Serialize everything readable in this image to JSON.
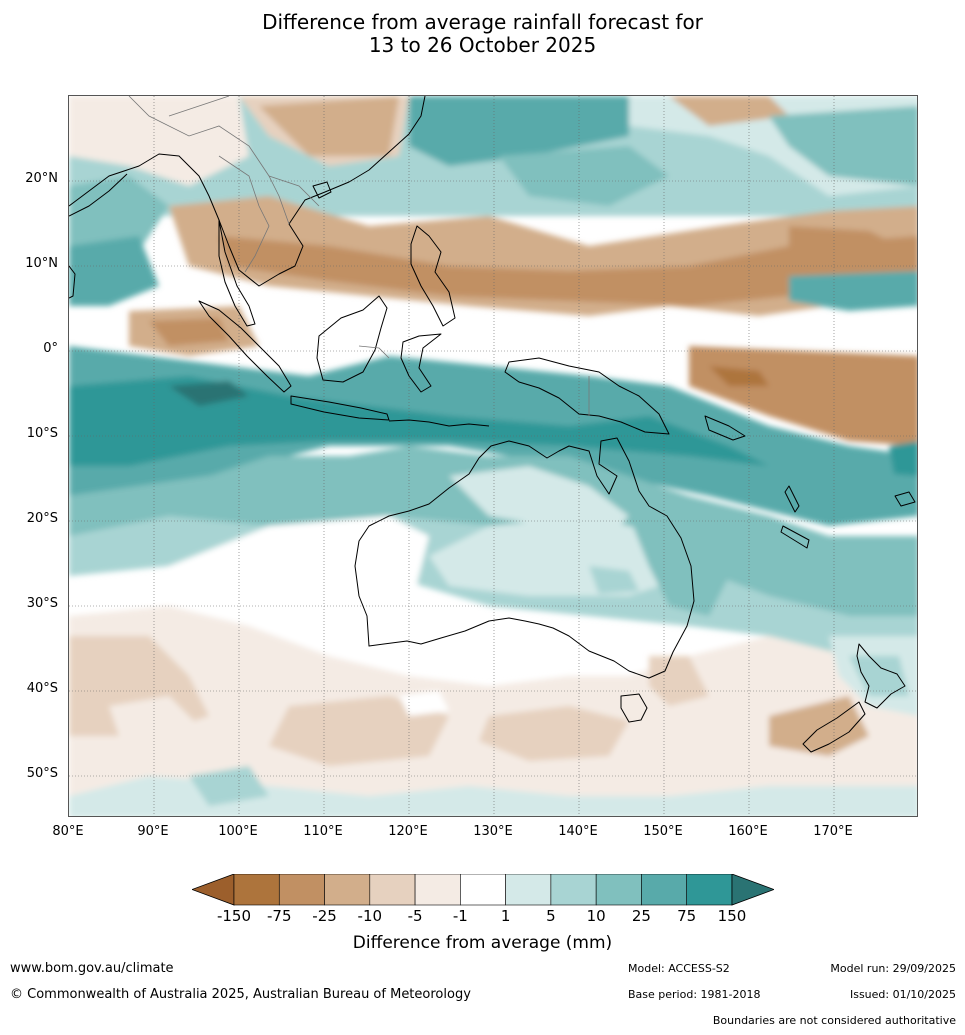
{
  "title": {
    "line1": "Difference from average rainfall forecast for",
    "line2": "13 to 26 October 2025"
  },
  "map": {
    "lat_labels": [
      "20°N",
      "10°N",
      "0°",
      "10°S",
      "20°S",
      "30°S",
      "40°S",
      "50°S"
    ],
    "lon_labels": [
      "80°E",
      "90°E",
      "100°E",
      "110°E",
      "120°E",
      "130°E",
      "140°E",
      "150°E",
      "160°E",
      "170°E"
    ],
    "extent": {
      "lon_min": 80,
      "lon_max": 180,
      "lat_min": -55,
      "lat_max": 30
    }
  },
  "legend": {
    "label": "Difference from average (mm)",
    "ticks": [
      "-150",
      "-75",
      "-25",
      "-10",
      "-5",
      "-1",
      "1",
      "5",
      "10",
      "25",
      "75",
      "150"
    ],
    "colors": [
      "#9c5f2c",
      "#ad743c",
      "#c19063",
      "#d2ae8b",
      "#e6d1bf",
      "#f4ebe4",
      "#ffffff",
      "#d4e9e8",
      "#a8d4d3",
      "#80c0be",
      "#58aaaa",
      "#2f9797",
      "#2a7373"
    ]
  },
  "footer": {
    "url": "www.bom.gov.au/climate",
    "copyright": "© Commonwealth of Australia 2025, Australian Bureau of Meteorology",
    "model": "Model: ACCESS-S2",
    "base_period": "Base period: 1981-2018",
    "model_run": "Model run: 29/09/2025",
    "issued": "Issued: 01/10/2025",
    "boundaries": "Boundaries are not considered authoritative"
  }
}
